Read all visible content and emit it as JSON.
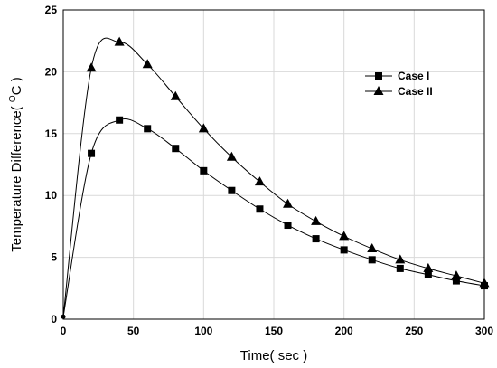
{
  "chart_data": {
    "type": "line",
    "xlabel": "Time( sec )",
    "ylabel": "Temperature Difference( °C )",
    "ylabel_parts": {
      "before": "Temperature Difference( ",
      "superscript": "O",
      "unit": "C",
      "after": " )"
    },
    "xlim": [
      0,
      300
    ],
    "ylim": [
      0,
      25
    ],
    "xticks": [
      0,
      50,
      100,
      150,
      200,
      250,
      300
    ],
    "yticks": [
      0,
      5,
      10,
      15,
      20,
      25
    ],
    "grid": true,
    "legend_position": "top-right",
    "series": [
      {
        "name": "Case I",
        "marker": "square",
        "x": [
          0,
          20,
          40,
          60,
          80,
          100,
          120,
          140,
          160,
          180,
          200,
          220,
          240,
          260,
          280,
          300
        ],
        "y": [
          0.2,
          13.4,
          16.1,
          15.4,
          13.8,
          12.0,
          10.4,
          8.9,
          7.6,
          6.5,
          5.6,
          4.8,
          4.1,
          3.6,
          3.1,
          2.7
        ]
      },
      {
        "name": "Case II",
        "marker": "triangle",
        "x": [
          0,
          20,
          40,
          60,
          80,
          100,
          120,
          140,
          160,
          180,
          200,
          220,
          240,
          260,
          280,
          300
        ],
        "y": [
          0.2,
          20.3,
          22.4,
          20.6,
          18.0,
          15.4,
          13.1,
          11.1,
          9.3,
          7.9,
          6.7,
          5.7,
          4.8,
          4.1,
          3.5,
          2.9
        ]
      }
    ]
  }
}
